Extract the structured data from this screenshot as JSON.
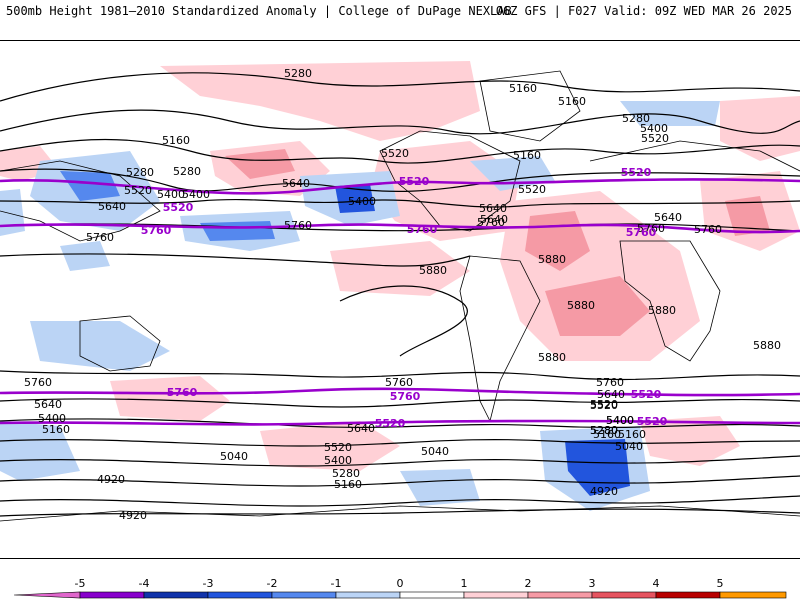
{
  "header": {
    "title_left": "500mb Height 1981–2010 Standardized Anomaly | College of DuPage NEXLAB",
    "title_right": "06Z GFS | F027 Valid: 09Z WED MAR 26 2025"
  },
  "map": {
    "contour_labels": [
      "5280",
      "5160",
      "5160",
      "5280",
      "5400",
      "5520",
      "5160",
      "5160",
      "5280",
      "5400",
      "5520",
      "5280",
      "5400",
      "5520",
      "5640",
      "5640",
      "5400",
      "5520",
      "5640",
      "5760",
      "5640",
      "5760",
      "5760",
      "5760",
      "5880",
      "5880",
      "5880",
      "5880",
      "5880",
      "5880",
      "5760",
      "5640",
      "5400",
      "5160",
      "5760",
      "5520",
      "5640",
      "5520",
      "5400",
      "5280",
      "5160",
      "5040",
      "5040",
      "4920",
      "4920",
      "4920",
      "5760",
      "5640",
      "5520",
      "5400",
      "5280",
      "5160",
      "5040",
      "5160",
      "5280",
      "5400",
      "5640",
      "5760"
    ],
    "highlighted_labels": [
      "5520",
      "5520",
      "5760",
      "5760",
      "5520",
      "5760",
      "5760",
      "5760",
      "5520",
      "5520",
      "5520"
    ]
  },
  "colorbar": {
    "ticks": [
      "-5",
      "-4",
      "-3",
      "-2",
      "-1",
      "0",
      "1",
      "2",
      "3",
      "4",
      "5"
    ],
    "colors": [
      "#e066cc",
      "#8800cc",
      "#1133aa",
      "#2255dd",
      "#5588ee",
      "#bbd4f5",
      "#ffffff",
      "#ffd0d6",
      "#f59aa5",
      "#e65460",
      "#b80000",
      "#ff9900",
      "#ffcc33"
    ]
  }
}
